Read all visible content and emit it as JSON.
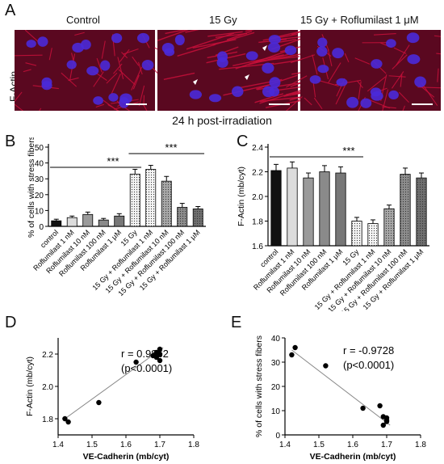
{
  "panel_letters": {
    "a": "A",
    "b": "B",
    "c": "C",
    "d": "D",
    "e": "E"
  },
  "micrograph": {
    "side_label": "F-Actin",
    "conditions": [
      "Control",
      "15 Gy",
      "15 Gy + Roflumilast 1 μM"
    ],
    "caption": "24 h post-irradiation",
    "colors": {
      "actin": "#c8103a",
      "nucleus": "#4a2ad8",
      "background": "#5a0820"
    }
  },
  "chart_data": [
    {
      "panel": "B",
      "type": "bar",
      "ylabel": "% of cells with stress fibers",
      "xlabel": "",
      "ylim": [
        0,
        50
      ],
      "yticks": [
        0,
        10,
        20,
        30,
        40,
        50
      ],
      "categories": [
        "control",
        "Roflumilast 1 nM",
        "Roflumilast 10 nM",
        "Roflumilast 100 nM",
        "Roflumilast 1 μM",
        "15 Gy",
        "15 Gy + Roflumilast 1 nM",
        "15 Gy + Roflumilast 10 nM",
        "15 Gy + Roflumilast 100 nM",
        "15 Gy + Roflumilast 1 μM"
      ],
      "values": [
        3.5,
        5.5,
        7.5,
        4,
        6.5,
        33,
        36,
        28.5,
        12,
        11
      ],
      "errors": [
        1,
        1,
        1.5,
        1,
        1.5,
        3,
        2.5,
        3,
        2.5,
        1.5
      ],
      "significance": [
        {
          "label": "***"
        },
        {
          "label": "***"
        }
      ]
    },
    {
      "panel": "C",
      "type": "bar",
      "ylabel": "F-Actin (mb/cyt)",
      "xlabel": "",
      "ylim": [
        1.6,
        2.4
      ],
      "yticks": [
        1.6,
        1.8,
        2.0,
        2.2,
        2.4
      ],
      "categories": [
        "control",
        "Roflumilast 1 nM",
        "Roflumilast 10 nM",
        "Roflumilast 100 nM",
        "Roflumilast 1 μM",
        "15 Gy",
        "15 Gy + Roflumilast 1 nM",
        "15 Gy + Roflumilast 10 nM",
        "15 Gy + Roflumilast 100 nM",
        "15 Gy + Roflumilast 1 μM"
      ],
      "values": [
        2.21,
        2.23,
        2.15,
        2.2,
        2.19,
        1.8,
        1.78,
        1.9,
        2.18,
        2.15
      ],
      "errors": [
        0.05,
        0.05,
        0.04,
        0.05,
        0.05,
        0.03,
        0.03,
        0.03,
        0.05,
        0.04
      ],
      "significance": [
        {
          "label": "***"
        }
      ]
    },
    {
      "panel": "D",
      "type": "scatter",
      "xlabel": "VE-Cadherin (mb/cyt)",
      "ylabel": "F-Actin (mb/cyt)",
      "xlim": [
        1.4,
        1.8
      ],
      "ylim": [
        1.7,
        2.3
      ],
      "xticks": [
        1.4,
        1.5,
        1.6,
        1.7,
        1.8
      ],
      "yticks": [
        1.8,
        2.0,
        2.2
      ],
      "points": [
        [
          1.42,
          1.8
        ],
        [
          1.43,
          1.78
        ],
        [
          1.52,
          1.9
        ],
        [
          1.63,
          2.15
        ],
        [
          1.68,
          2.19
        ],
        [
          1.69,
          2.21
        ],
        [
          1.69,
          2.18
        ],
        [
          1.7,
          2.23
        ],
        [
          1.7,
          2.2
        ],
        [
          1.7,
          2.16
        ]
      ],
      "fit": [
        [
          1.42,
          1.8
        ],
        [
          1.71,
          2.24
        ]
      ],
      "annotation": [
        "r = 0.9862",
        "(p<0.0001)"
      ]
    },
    {
      "panel": "E",
      "type": "scatter",
      "xlabel": "VE-Cadherin (mb/cyt)",
      "ylabel": "% of cells with stress fibers",
      "xlim": [
        1.4,
        1.8
      ],
      "ylim": [
        0,
        40
      ],
      "xticks": [
        1.4,
        1.5,
        1.6,
        1.7,
        1.8
      ],
      "yticks": [
        0,
        10,
        20,
        30,
        40
      ],
      "points": [
        [
          1.42,
          33
        ],
        [
          1.43,
          36
        ],
        [
          1.52,
          28.5
        ],
        [
          1.63,
          11
        ],
        [
          1.68,
          12
        ],
        [
          1.69,
          7.5
        ],
        [
          1.69,
          4
        ],
        [
          1.7,
          6
        ],
        [
          1.7,
          5.5
        ],
        [
          1.7,
          7
        ]
      ],
      "fit": [
        [
          1.42,
          35
        ],
        [
          1.71,
          4
        ]
      ],
      "annotation": [
        "r = -0.9728",
        "(p<0.0001)"
      ]
    }
  ]
}
